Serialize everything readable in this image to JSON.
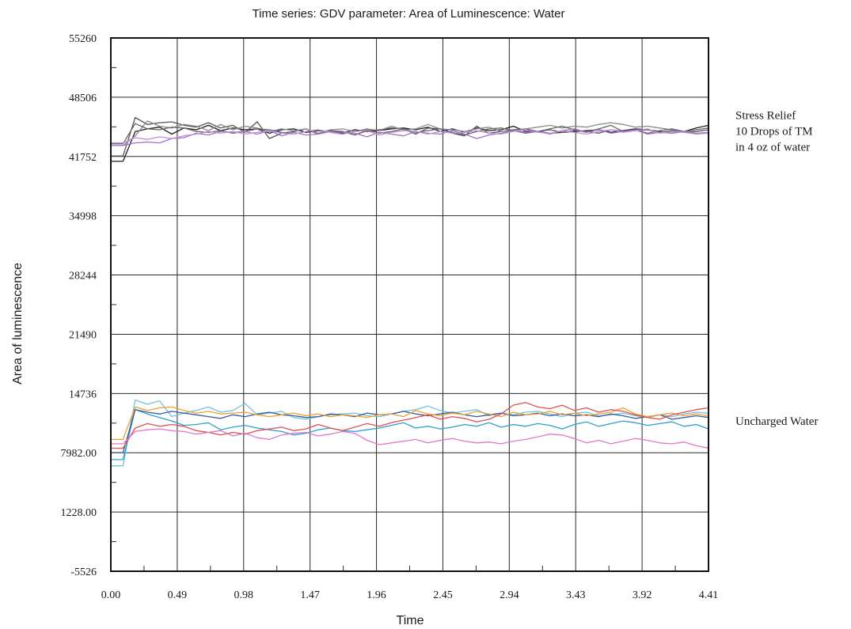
{
  "chart_data": {
    "type": "line",
    "title": "Time series: GDV parameter: Area of Luminescence: Water",
    "xlabel": "Time",
    "ylabel": "Area of luminescence",
    "xlim": [
      0.0,
      4.41
    ],
    "ylim": [
      -5526,
      55260
    ],
    "x_ticks": [
      "0.00",
      "0.49",
      "0.98",
      "1.47",
      "1.96",
      "2.45",
      "2.94",
      "3.43",
      "3.92",
      "4.41"
    ],
    "y_ticks": [
      "55260",
      "48506",
      "41752",
      "34998",
      "28244",
      "21490",
      "14736",
      "7982.00",
      "1228.00",
      "-5526"
    ],
    "grid": true,
    "annotations": [
      {
        "group": "stress",
        "lines": [
          "Stress Relief",
          "10 Drops of TM",
          "in 4 oz of water"
        ]
      },
      {
        "group": "uncharged",
        "lines": [
          "Uncharged Water"
        ]
      }
    ],
    "x": [
      0.0,
      0.09,
      0.18,
      0.27,
      0.36,
      0.45,
      0.54,
      0.63,
      0.72,
      0.81,
      0.9,
      0.99,
      1.08,
      1.17,
      1.26,
      1.35,
      1.44,
      1.53,
      1.62,
      1.71,
      1.8,
      1.89,
      1.98,
      2.07,
      2.16,
      2.25,
      2.34,
      2.43,
      2.52,
      2.61,
      2.7,
      2.79,
      2.88,
      2.97,
      3.06,
      3.15,
      3.24,
      3.33,
      3.42,
      3.51,
      3.6,
      3.69,
      3.78,
      3.87,
      3.96,
      4.05,
      4.14,
      4.23,
      4.32,
      4.41
    ],
    "series": [
      {
        "group": "stress",
        "color": "#1e1e1e",
        "values": [
          41200,
          41200,
          44600,
          44900,
          45100,
          44300,
          45000,
          44800,
          45300,
          44700,
          45000,
          44800,
          44900,
          44400,
          44800,
          44900,
          44500,
          44700,
          44600,
          44400,
          44800,
          44600,
          44700,
          44900,
          45000,
          44800,
          45100,
          44600,
          44900,
          44500,
          45000,
          44700,
          44800,
          45200,
          44600,
          44600,
          44400,
          44500,
          44600,
          44700,
          44800,
          44500,
          44700,
          44900,
          44800,
          44600,
          44400,
          44600,
          45000,
          45300
        ]
      },
      {
        "group": "stress",
        "color": "#555555",
        "values": [
          41800,
          41800,
          46200,
          45400,
          45600,
          45700,
          45300,
          45100,
          45600,
          45000,
          45300,
          44500,
          45700,
          43800,
          44400,
          44600,
          44900,
          44300,
          44700,
          44600,
          44200,
          44700,
          44800,
          45000,
          44900,
          44300,
          45000,
          44900,
          44400,
          44100,
          45200,
          44400,
          44600,
          44800,
          44900,
          44600,
          44800,
          44500,
          44700,
          44600,
          44400,
          44800,
          44600,
          44700,
          44800,
          44500,
          44700,
          44500,
          44600,
          44800
        ]
      },
      {
        "group": "stress",
        "color": "#8a8a8a",
        "values": [
          43000,
          43000,
          44100,
          45800,
          45200,
          45000,
          45400,
          45200,
          44700,
          45400,
          44800,
          45200,
          45000,
          44600,
          44900,
          44700,
          44900,
          44400,
          44800,
          44900,
          44600,
          44900,
          44700,
          45200,
          44800,
          44900,
          45400,
          44900,
          44800,
          44600,
          44900,
          45100,
          44600,
          44700,
          44900,
          45100,
          45300,
          45000,
          45200,
          45100,
          45400,
          45600,
          45400,
          45100,
          45200,
          45000,
          44800,
          44600,
          44400,
          44500
        ]
      },
      {
        "group": "stress",
        "color": "#666666",
        "values": [
          43200,
          43200,
          45500,
          44900,
          44800,
          45100,
          45000,
          44600,
          44500,
          44700,
          44400,
          44600,
          44900,
          44800,
          44500,
          44300,
          44600,
          44800,
          44500,
          44300,
          44600,
          44800,
          44400,
          44600,
          44900,
          44500,
          44700,
          44900,
          44500,
          44200,
          44600,
          44900,
          45000,
          44700,
          44400,
          44600,
          44900,
          45200,
          44800,
          44500,
          44900,
          45300,
          44600,
          44800,
          44400,
          44700,
          44900,
          44600,
          44800,
          45000
        ]
      },
      {
        "group": "stress",
        "color": "#a070c8",
        "values": [
          43000,
          43000,
          43300,
          43400,
          43300,
          43800,
          43900,
          44400,
          44200,
          44600,
          44500,
          44600,
          44300,
          44700,
          44100,
          44500,
          44200,
          44300,
          44600,
          44500,
          44400,
          44000,
          44500,
          44300,
          44100,
          44600,
          44400,
          44300,
          44700,
          44300,
          43800,
          44200,
          44400,
          44700,
          44500,
          44600,
          44300,
          44700,
          44900,
          44500,
          44800,
          44400,
          44600,
          44800,
          44300,
          44500,
          44400,
          44600,
          44300,
          44500
        ]
      },
      {
        "group": "stress",
        "color": "#c090dc",
        "values": [
          43300,
          43300,
          43900,
          43700,
          44000,
          43800,
          44100,
          44300,
          44600,
          44400,
          44600,
          44300,
          44500,
          44700,
          44400,
          44300,
          44600,
          44800,
          44500,
          44300,
          44600,
          44700,
          44200,
          44500,
          44700,
          44600,
          44300,
          44600,
          44400,
          44500,
          44700,
          44400,
          44300,
          44600,
          44800,
          44500,
          44400,
          44700,
          44500,
          44300,
          44600,
          44800,
          44500,
          44700,
          44900,
          44400,
          44600,
          44500,
          44300,
          44400
        ]
      },
      {
        "group": "uncharged",
        "color": "#6fc3df",
        "values": [
          6500,
          6500,
          14000,
          13500,
          13900,
          12100,
          12500,
          12800,
          13200,
          12600,
          12800,
          13600,
          12300,
          12500,
          12700,
          12000,
          11800,
          12100,
          12300,
          12400,
          12500,
          12200,
          12100,
          12400,
          12700,
          12900,
          13300,
          12800,
          12500,
          12700,
          12900,
          12200,
          12500,
          12300,
          12600,
          12700,
          12400,
          12100,
          12500,
          12600,
          12200,
          12300,
          12500,
          12200,
          12000,
          12300,
          12100,
          12400,
          12600,
          12500
        ]
      },
      {
        "group": "uncharged",
        "color": "#2aa0d0",
        "values": [
          7200,
          7200,
          12900,
          12400,
          12000,
          11600,
          11100,
          11200,
          11400,
          10600,
          10900,
          11100,
          10800,
          10600,
          10400,
          10000,
          10200,
          10600,
          10800,
          10500,
          10400,
          10600,
          10800,
          11100,
          11400,
          10800,
          11000,
          10700,
          10900,
          11200,
          11000,
          11400,
          10900,
          11200,
          11000,
          11300,
          11100,
          10700,
          11200,
          11500,
          11000,
          11300,
          11600,
          11400,
          11100,
          11300,
          11500,
          11000,
          11200,
          10700
        ]
      },
      {
        "group": "uncharged",
        "color": "#3a5a9a",
        "values": [
          8000,
          8000,
          12900,
          12600,
          12400,
          12700,
          12500,
          12300,
          12100,
          11900,
          12300,
          12100,
          12400,
          12600,
          12300,
          12200,
          12000,
          12100,
          12400,
          12300,
          12100,
          12500,
          12300,
          12400,
          12700,
          12400,
          12200,
          12400,
          12600,
          12300,
          12100,
          12300,
          12500,
          12200,
          12300,
          12500,
          12200,
          12400,
          12200,
          12300,
          12100,
          12400,
          12200,
          11900,
          12100,
          12300,
          11800,
          12000,
          12200,
          12000
        ]
      },
      {
        "group": "uncharged",
        "color": "#f0a030",
        "values": [
          9500,
          9500,
          13200,
          12800,
          13100,
          13200,
          12800,
          12500,
          12700,
          12400,
          12500,
          12600,
          12300,
          12100,
          12300,
          12500,
          12200,
          12400,
          12100,
          12300,
          12200,
          12000,
          12300,
          12400,
          12100,
          12800,
          12400,
          12200,
          12500,
          12300,
          12700,
          12400,
          12100,
          12600,
          12300,
          12400,
          12700,
          12300,
          12500,
          12200,
          12400,
          12600,
          13100,
          12400,
          12100,
          12300,
          12500,
          12200,
          12400,
          12200
        ]
      },
      {
        "group": "uncharged",
        "color": "#e05050",
        "values": [
          8500,
          8500,
          10800,
          11300,
          11000,
          11200,
          11000,
          10500,
          10300,
          10000,
          10300,
          10100,
          10500,
          10700,
          10900,
          10500,
          10700,
          11200,
          10800,
          10500,
          10900,
          11300,
          11000,
          11400,
          11700,
          12000,
          12300,
          11800,
          12100,
          11900,
          11500,
          11800,
          12400,
          13400,
          13700,
          13200,
          13000,
          13400,
          12800,
          13100,
          12600,
          12900,
          12700,
          12300,
          12000,
          11800,
          12300,
          12600,
          12900,
          13100
        ]
      },
      {
        "group": "uncharged",
        "color": "#e078c8",
        "values": [
          9000,
          9000,
          10400,
          10600,
          10700,
          10500,
          10400,
          10100,
          10300,
          10500,
          9900,
          10200,
          9700,
          9500,
          10000,
          10200,
          10300,
          9900,
          10100,
          10400,
          10200,
          9400,
          8900,
          9100,
          9300,
          9500,
          9100,
          9400,
          9600,
          9300,
          9100,
          9200,
          9000,
          9300,
          9500,
          9800,
          10100,
          10000,
          9600,
          9100,
          9400,
          9000,
          9300,
          9600,
          9400,
          9100,
          9000,
          9200,
          8800,
          8500
        ]
      }
    ]
  }
}
